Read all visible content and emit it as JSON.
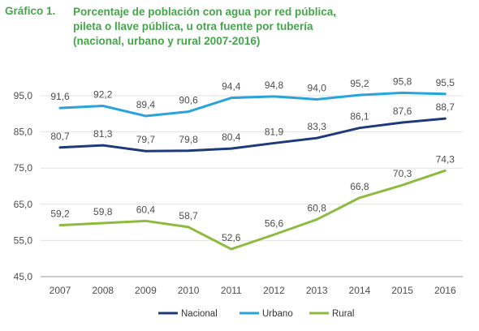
{
  "figure": {
    "prefix": "Gráfico 1.",
    "title_lines": [
      "Porcentaje de población con agua por red pública,",
      "pileta o llave pública, u otra fuente por tubería",
      "(nacional, urbano y rural 2007-2016)"
    ]
  },
  "chart_data": {
    "type": "line",
    "title": "Gráfico 1. Porcentaje de población con agua por red pública, pileta o llave pública, u otra fuente por tubería (nacional, urbano y rural 2007-2016)",
    "x": [
      "2007",
      "2008",
      "2009",
      "2010",
      "2011",
      "2012",
      "2013",
      "2014",
      "2015",
      "2016"
    ],
    "ylim": [
      45,
      95
    ],
    "yticks": [
      45,
      55,
      65,
      75,
      85,
      95
    ],
    "ytick_labels": [
      "45,0",
      "55,0",
      "65,0",
      "75,0",
      "85,0",
      "95,0"
    ],
    "grid": "horizontal",
    "legend_position": "bottom",
    "series": [
      {
        "name": "Nacional",
        "color": "#1f3a7a",
        "values": [
          80.7,
          81.3,
          79.7,
          79.8,
          80.4,
          81.9,
          83.3,
          86.1,
          87.6,
          88.7
        ],
        "labels": [
          "80,7",
          "81,3",
          "79,7",
          "79,8",
          "80,4",
          "81,9",
          "83,3",
          "86,1",
          "87,6",
          "88,7"
        ]
      },
      {
        "name": "Urbano",
        "color": "#29a3dc",
        "values": [
          91.6,
          92.2,
          89.4,
          90.6,
          94.4,
          94.8,
          94.0,
          95.2,
          95.8,
          95.5
        ],
        "labels": [
          "91,6",
          "92,2",
          "89,4",
          "90,6",
          "94,4",
          "94,8",
          "94,0",
          "95,2",
          "95,8",
          "95,5"
        ]
      },
      {
        "name": "Rural",
        "color": "#8dbb3f",
        "values": [
          59.2,
          59.8,
          60.4,
          58.7,
          52.6,
          56.6,
          60.8,
          66.8,
          70.3,
          74.3
        ],
        "labels": [
          "59,2",
          "59,8",
          "60,4",
          "58,7",
          "52,6",
          "56,6",
          "60,8",
          "66,8",
          "70,3",
          "74,3"
        ]
      }
    ]
  }
}
